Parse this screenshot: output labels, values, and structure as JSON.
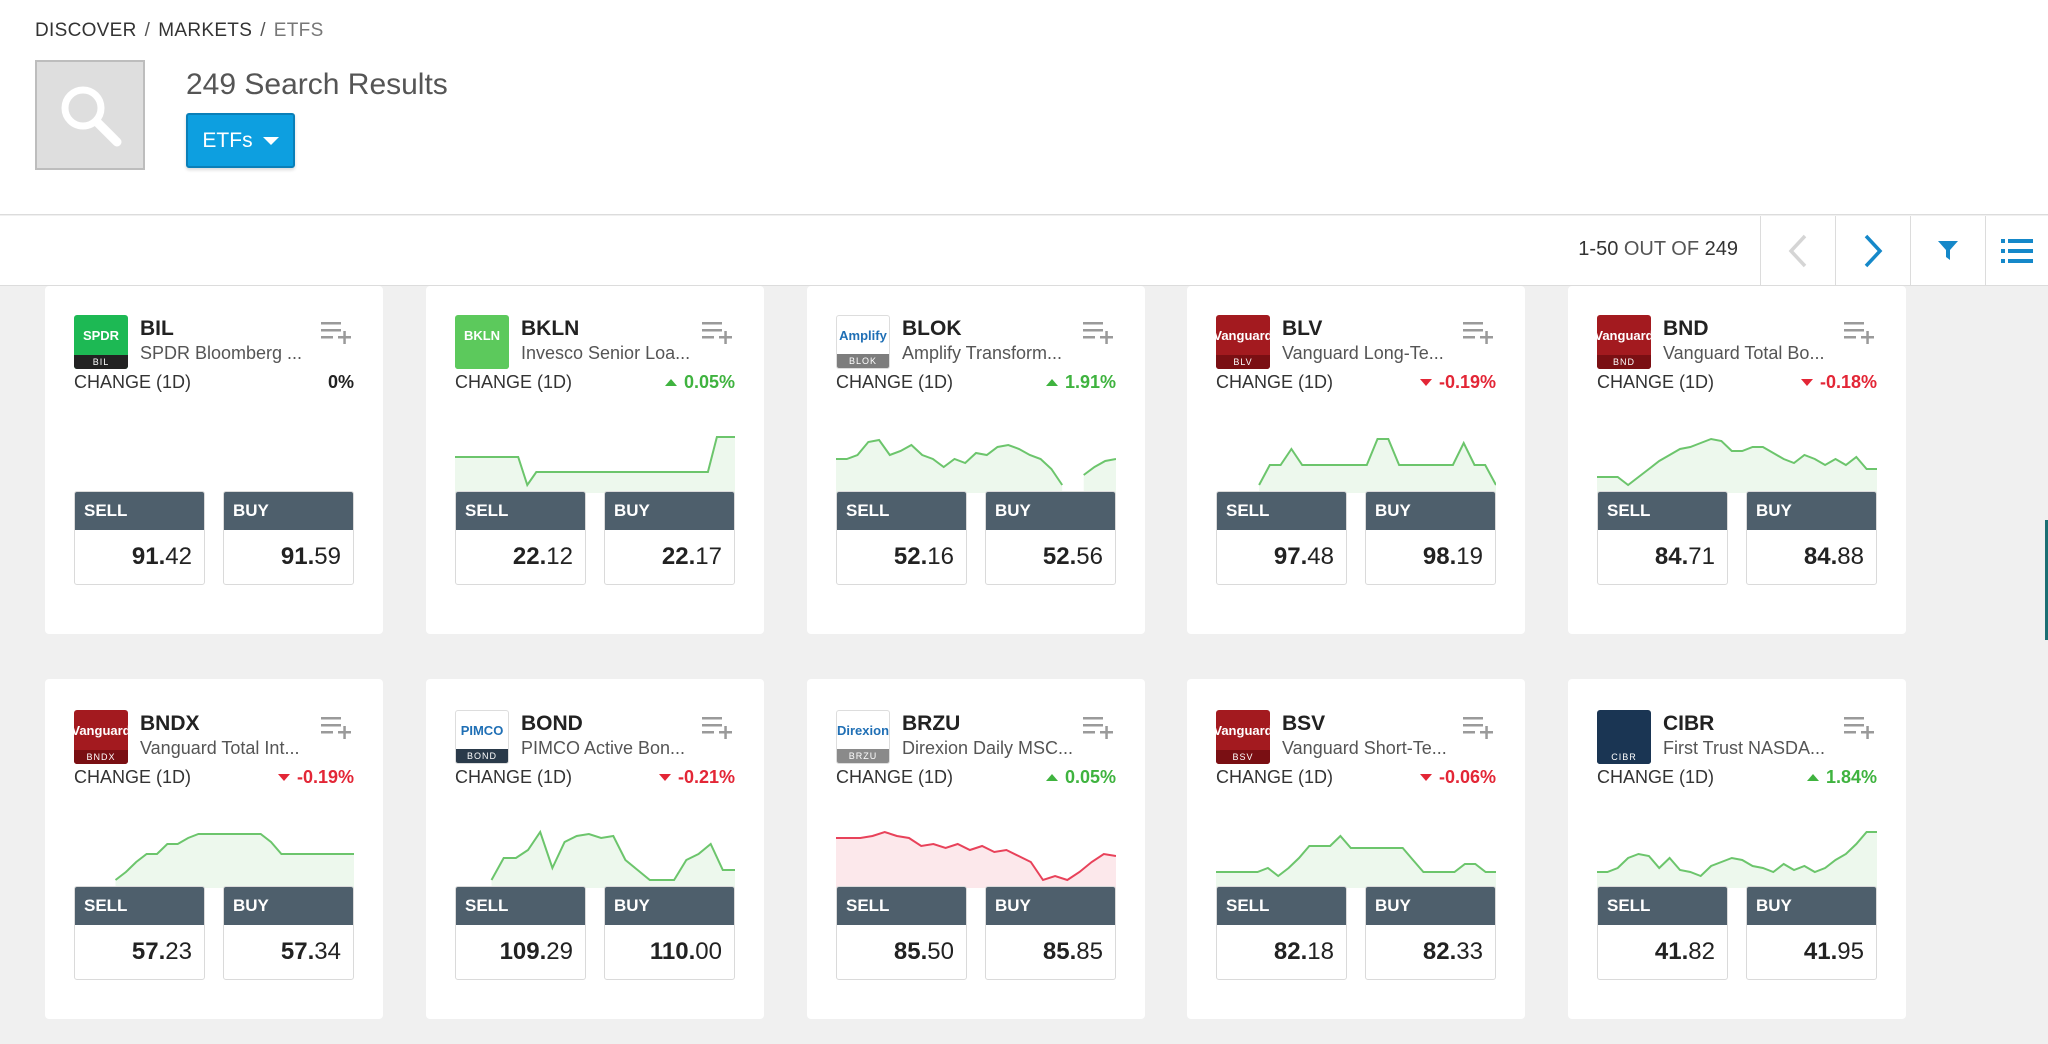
{
  "breadcrumb": {
    "items": [
      "DISCOVER",
      "MARKETS"
    ],
    "current": "ETFS",
    "separator": "/"
  },
  "header": {
    "results_title": "249 Search Results",
    "filter_button": "ETFs"
  },
  "toolbar": {
    "range": "1-50",
    "out_of": "OUT OF",
    "total": "249"
  },
  "labels": {
    "change": "CHANGE (1D)",
    "sell": "SELL",
    "buy": "BUY"
  },
  "colors": {
    "accent": "#0d9fe0",
    "up": "#3fb33f",
    "down": "#e32636",
    "trade_header": "#4e5f6c"
  },
  "cards": [
    {
      "ticker": "BIL",
      "name": "SPDR Bloomberg ...",
      "logo_top": "SPDR",
      "logo_bot": "BIL",
      "logo_bg": "#1db954",
      "logo_bot_bg": "#222",
      "change": "0%",
      "dir": "flat",
      "sell_int": "91.",
      "sell_dec": "42",
      "buy_int": "91.",
      "buy_dec": "59",
      "spark": []
    },
    {
      "ticker": "BKLN",
      "name": "Invesco Senior Loa...",
      "logo_top": "BKLN",
      "logo_bot": "",
      "logo_bg": "#5cc95c",
      "logo_bot_bg": "#5cc95c",
      "change": "0.05%",
      "dir": "up",
      "sell_int": "22.",
      "sell_dec": "12",
      "buy_int": "22.",
      "buy_dec": "17",
      "spark": [
        20,
        20,
        20,
        20,
        20,
        20,
        20,
        20,
        48,
        35,
        35,
        35,
        35,
        35,
        35,
        35,
        35,
        35,
        35,
        35,
        35,
        35,
        35,
        35,
        35,
        35,
        35,
        35,
        35,
        0,
        0,
        0
      ]
    },
    {
      "ticker": "BLOK",
      "name": "Amplify Transform...",
      "logo_top": "Amplify",
      "logo_bot": "BLOK",
      "logo_bg": "#ffffff",
      "logo_bot_bg": "#7d7d7d",
      "change": "1.91%",
      "dir": "up",
      "sell_int": "52.",
      "sell_dec": "16",
      "buy_int": "52.",
      "buy_dec": "56",
      "spark": [
        22,
        22,
        18,
        5,
        3,
        18,
        14,
        8,
        18,
        22,
        30,
        22,
        26,
        16,
        18,
        10,
        8,
        12,
        18,
        22,
        32,
        48,
        null,
        38,
        30,
        24,
        22
      ]
    },
    {
      "ticker": "BLV",
      "name": "Vanguard Long-Te...",
      "logo_top": "Vanguard",
      "logo_bot": "BLV",
      "logo_bg": "#a31a1f",
      "logo_bot_bg": "#7a0f13",
      "change": "-0.19%",
      "dir": "down",
      "sell_int": "97.",
      "sell_dec": "48",
      "buy_int": "98.",
      "buy_dec": "19",
      "spark": [
        null,
        null,
        null,
        null,
        48,
        28,
        28,
        12,
        28,
        28,
        28,
        28,
        28,
        28,
        28,
        2,
        2,
        28,
        28,
        28,
        28,
        28,
        28,
        6,
        28,
        28,
        48
      ]
    },
    {
      "ticker": "BND",
      "name": "Vanguard Total Bo...",
      "logo_top": "Vanguard",
      "logo_bot": "BND",
      "logo_bg": "#a31a1f",
      "logo_bot_bg": "#7a0f13",
      "change": "-0.18%",
      "dir": "down",
      "sell_int": "84.",
      "sell_dec": "71",
      "buy_int": "84.",
      "buy_dec": "88",
      "spark": [
        40,
        40,
        40,
        48,
        40,
        32,
        24,
        18,
        12,
        10,
        6,
        2,
        4,
        14,
        14,
        10,
        10,
        16,
        22,
        26,
        18,
        22,
        28,
        22,
        28,
        20,
        32,
        32
      ]
    },
    {
      "ticker": "BNDX",
      "name": "Vanguard Total Int...",
      "logo_top": "Vanguard",
      "logo_bot": "BNDX",
      "logo_bg": "#a31a1f",
      "logo_bot_bg": "#7a0f13",
      "change": "-0.19%",
      "dir": "down",
      "sell_int": "57.",
      "sell_dec": "23",
      "buy_int": "57.",
      "buy_dec": "34",
      "spark": [
        null,
        null,
        null,
        null,
        48,
        40,
        30,
        22,
        22,
        12,
        12,
        6,
        2,
        2,
        2,
        2,
        2,
        2,
        2,
        10,
        22,
        22,
        22,
        22,
        22,
        22,
        22,
        22
      ]
    },
    {
      "ticker": "BOND",
      "name": "PIMCO Active Bon...",
      "logo_top": "PIMCO",
      "logo_bot": "BOND",
      "logo_bg": "#ffffff",
      "logo_bot_bg": "#2a3a4a",
      "change": "-0.21%",
      "dir": "down",
      "sell_int": "109.",
      "sell_dec": "29",
      "buy_int": "110.",
      "buy_dec": "00",
      "spark": [
        null,
        null,
        null,
        48,
        26,
        26,
        18,
        0,
        36,
        10,
        4,
        2,
        6,
        4,
        28,
        38,
        48,
        48,
        48,
        28,
        22,
        12,
        38,
        38
      ]
    },
    {
      "ticker": "BRZU",
      "name": "Direxion Daily MSC...",
      "logo_top": "Direxion",
      "logo_bot": "BRZU",
      "logo_bg": "#ffffff",
      "logo_bot_bg": "#8a8a8a",
      "change": "0.05%",
      "dir": "up",
      "sell_int": "85.",
      "sell_dec": "50",
      "buy_int": "85.",
      "buy_dec": "85",
      "spark": [
        6,
        6,
        6,
        4,
        0,
        4,
        6,
        14,
        12,
        16,
        12,
        18,
        14,
        20,
        18,
        24,
        30,
        48,
        44,
        48,
        40,
        30,
        22,
        24
      ]
    },
    {
      "ticker": "BSV",
      "name": "Vanguard Short-Te...",
      "logo_top": "Vanguard",
      "logo_bot": "BSV",
      "logo_bg": "#a31a1f",
      "logo_bot_bg": "#7a0f13",
      "change": "-0.06%",
      "dir": "down",
      "sell_int": "82.",
      "sell_dec": "18",
      "buy_int": "82.",
      "buy_dec": "33",
      "spark": [
        40,
        40,
        40,
        40,
        40,
        36,
        44,
        36,
        26,
        14,
        14,
        14,
        4,
        16,
        16,
        16,
        16,
        16,
        16,
        28,
        40,
        40,
        40,
        40,
        32,
        32,
        40,
        40
      ]
    },
    {
      "ticker": "CIBR",
      "name": "First Trust NASDA...",
      "logo_top": "",
      "logo_bot": "CIBR",
      "logo_bg": "#1a3553",
      "logo_bot_bg": "#1a3553",
      "change": "1.84%",
      "dir": "up",
      "sell_int": "41.",
      "sell_dec": "82",
      "buy_int": "41.",
      "buy_dec": "95",
      "spark": [
        40,
        40,
        36,
        26,
        22,
        24,
        36,
        26,
        38,
        40,
        44,
        34,
        30,
        26,
        28,
        34,
        36,
        40,
        32,
        38,
        34,
        40,
        36,
        28,
        22,
        12,
        0,
        0
      ]
    }
  ]
}
